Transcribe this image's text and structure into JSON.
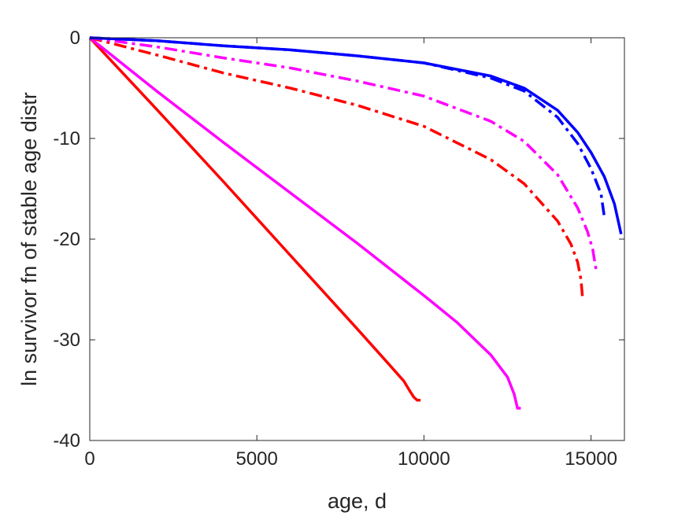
{
  "chart_data": {
    "type": "line",
    "title": "",
    "xlabel": "age, d",
    "ylabel": "ln survivor fn of stable age distr",
    "xlim": [
      0,
      16000
    ],
    "ylim": [
      -40,
      0
    ],
    "xticks": [
      0,
      5000,
      10000,
      15000
    ],
    "yticks": [
      0,
      -10,
      -20,
      -30,
      -40
    ],
    "xtick_labels": [
      "0",
      "5000",
      "10000",
      "15000"
    ],
    "ytick_labels": [
      "0",
      "-10",
      "-20",
      "-30",
      "-40"
    ],
    "grid": false,
    "legend": "none",
    "series": [
      {
        "color": "#ff0000",
        "style": "solid",
        "x": [
          0,
          2000,
          4000,
          6000,
          8000,
          9000,
          9400,
          9600,
          9700,
          9800,
          9900
        ],
        "y": [
          0,
          -7.1,
          -14.3,
          -21.6,
          -28.9,
          -32.6,
          -34.1,
          -35.2,
          -35.7,
          -36,
          -36
        ]
      },
      {
        "color": "#ff00ff",
        "style": "solid",
        "x": [
          0,
          2000,
          4000,
          6000,
          8000,
          10000,
          11000,
          12000,
          12500,
          12700,
          12800,
          12900
        ],
        "y": [
          0,
          -5.3,
          -10.4,
          -15.4,
          -20.4,
          -25.6,
          -28.3,
          -31.5,
          -33.7,
          -35.4,
          -36.8,
          -36.8
        ]
      },
      {
        "color": "#ff0000",
        "style": "dashdot",
        "x": [
          0,
          2000,
          4000,
          6000,
          8000,
          10000,
          12000,
          13000,
          14000,
          14400,
          14600,
          14700,
          14750
        ],
        "y": [
          0,
          -1.7,
          -3.5,
          -5,
          -6.7,
          -8.8,
          -12.1,
          -14.5,
          -18.2,
          -20.5,
          -22.3,
          -24,
          -26
        ]
      },
      {
        "color": "#ff00ff",
        "style": "dashdot",
        "x": [
          0,
          2000,
          4000,
          6000,
          8000,
          10000,
          12000,
          13000,
          14000,
          14600,
          14900,
          15050,
          15150
        ],
        "y": [
          0,
          -0.9,
          -2,
          -3,
          -4.3,
          -5.8,
          -8.3,
          -10.3,
          -13.6,
          -16.9,
          -19.3,
          -21,
          -23
        ]
      },
      {
        "color": "#0000ff",
        "style": "dashdot",
        "x": [
          0,
          2000,
          4000,
          6000,
          8000,
          10000,
          12000,
          13000,
          14000,
          14600,
          15000,
          15300,
          15400
        ],
        "y": [
          0,
          -0.3,
          -0.8,
          -1.2,
          -1.8,
          -2.5,
          -4,
          -5.3,
          -7.9,
          -10.5,
          -13,
          -15.5,
          -17.8
        ]
      },
      {
        "color": "#0000ff",
        "style": "solid",
        "x": [
          0,
          2000,
          4000,
          6000,
          8000,
          10000,
          12000,
          13000,
          14000,
          14600,
          15000,
          15400,
          15700,
          15900
        ],
        "y": [
          0,
          -0.3,
          -0.8,
          -1.2,
          -1.8,
          -2.5,
          -3.8,
          -5,
          -7.2,
          -9.4,
          -11.4,
          -13.8,
          -16.5,
          -19.5
        ]
      }
    ]
  }
}
